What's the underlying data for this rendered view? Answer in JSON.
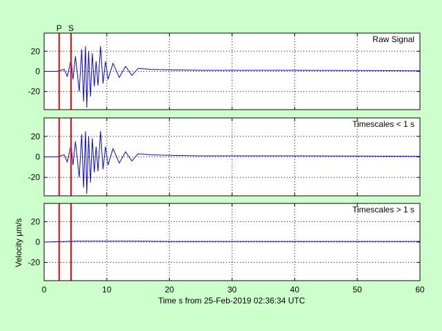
{
  "colors": {
    "background": "#ccffcc",
    "panel": "#ffffff",
    "signal": "#0000ff",
    "phase_marker": "#ff0000",
    "grid": "#000000"
  },
  "chart_data": {
    "type": "line",
    "xlabel": "Time s from 25-Feb-2019 02:36:34 UTC",
    "ylabel": "Velocity μm/s",
    "xlim": [
      0,
      60
    ],
    "xticks": [
      0,
      10,
      20,
      30,
      40,
      50,
      60
    ],
    "ylim": [
      -38,
      38
    ],
    "yticks": [
      -20,
      0,
      20
    ],
    "grid": true,
    "phase_markers": [
      {
        "label": "P",
        "time": 2.4
      },
      {
        "label": "S",
        "time": 4.3
      }
    ],
    "panels": [
      {
        "label": "Raw Signal",
        "series": [
          {
            "x": [
              0,
              2,
              3.2,
              3.7,
              4.3,
              4.6,
              5.0,
              5.6,
              6.0,
              6.3,
              6.6,
              6.8,
              7.1,
              7.4,
              7.7,
              8.0,
              8.3,
              8.6,
              9.0,
              9.4,
              9.8,
              10.2,
              11,
              12,
              13,
              14,
              15,
              17,
              20,
              25,
              30,
              40,
              50,
              60
            ],
            "y": [
              0,
              0,
              2,
              -5,
              12,
              -8,
              15,
              -20,
              22,
              -30,
              25,
              -36,
              20,
              -25,
              18,
              -15,
              10,
              -14,
              25,
              -12,
              10,
              -8,
              8,
              -6,
              5,
              -4,
              3,
              2,
              1.5,
              1,
              1,
              1,
              0.8,
              0.5
            ]
          }
        ]
      },
      {
        "label": "Timescales < 1 s",
        "series": [
          {
            "x": [
              0,
              2,
              3.2,
              3.7,
              4.3,
              4.6,
              5.0,
              5.6,
              6.0,
              6.3,
              6.6,
              6.8,
              7.1,
              7.4,
              7.7,
              8.0,
              8.3,
              8.6,
              9.0,
              9.4,
              9.8,
              10.2,
              11,
              12,
              13,
              14,
              15,
              17,
              20,
              25,
              30,
              40,
              50,
              60
            ],
            "y": [
              0,
              0,
              2,
              -5,
              12,
              -8,
              15,
              -20,
              22,
              -30,
              25,
              -36,
              20,
              -25,
              18,
              -15,
              10,
              -14,
              25,
              -12,
              10,
              -8,
              8,
              -6,
              5,
              -4,
              3,
              2,
              1.5,
              1,
              1,
              1,
              0.8,
              0.5
            ]
          }
        ]
      },
      {
        "label": "Timescales > 1 s",
        "series": [
          {
            "x": [
              0,
              5,
              10,
              15,
              20,
              25,
              30,
              35,
              40,
              45,
              50,
              55,
              60
            ],
            "y": [
              0,
              0.8,
              0.8,
              0.8,
              0.6,
              0.6,
              0.6,
              0.6,
              0.6,
              0.6,
              0.6,
              0.6,
              0.6
            ]
          }
        ]
      }
    ]
  }
}
